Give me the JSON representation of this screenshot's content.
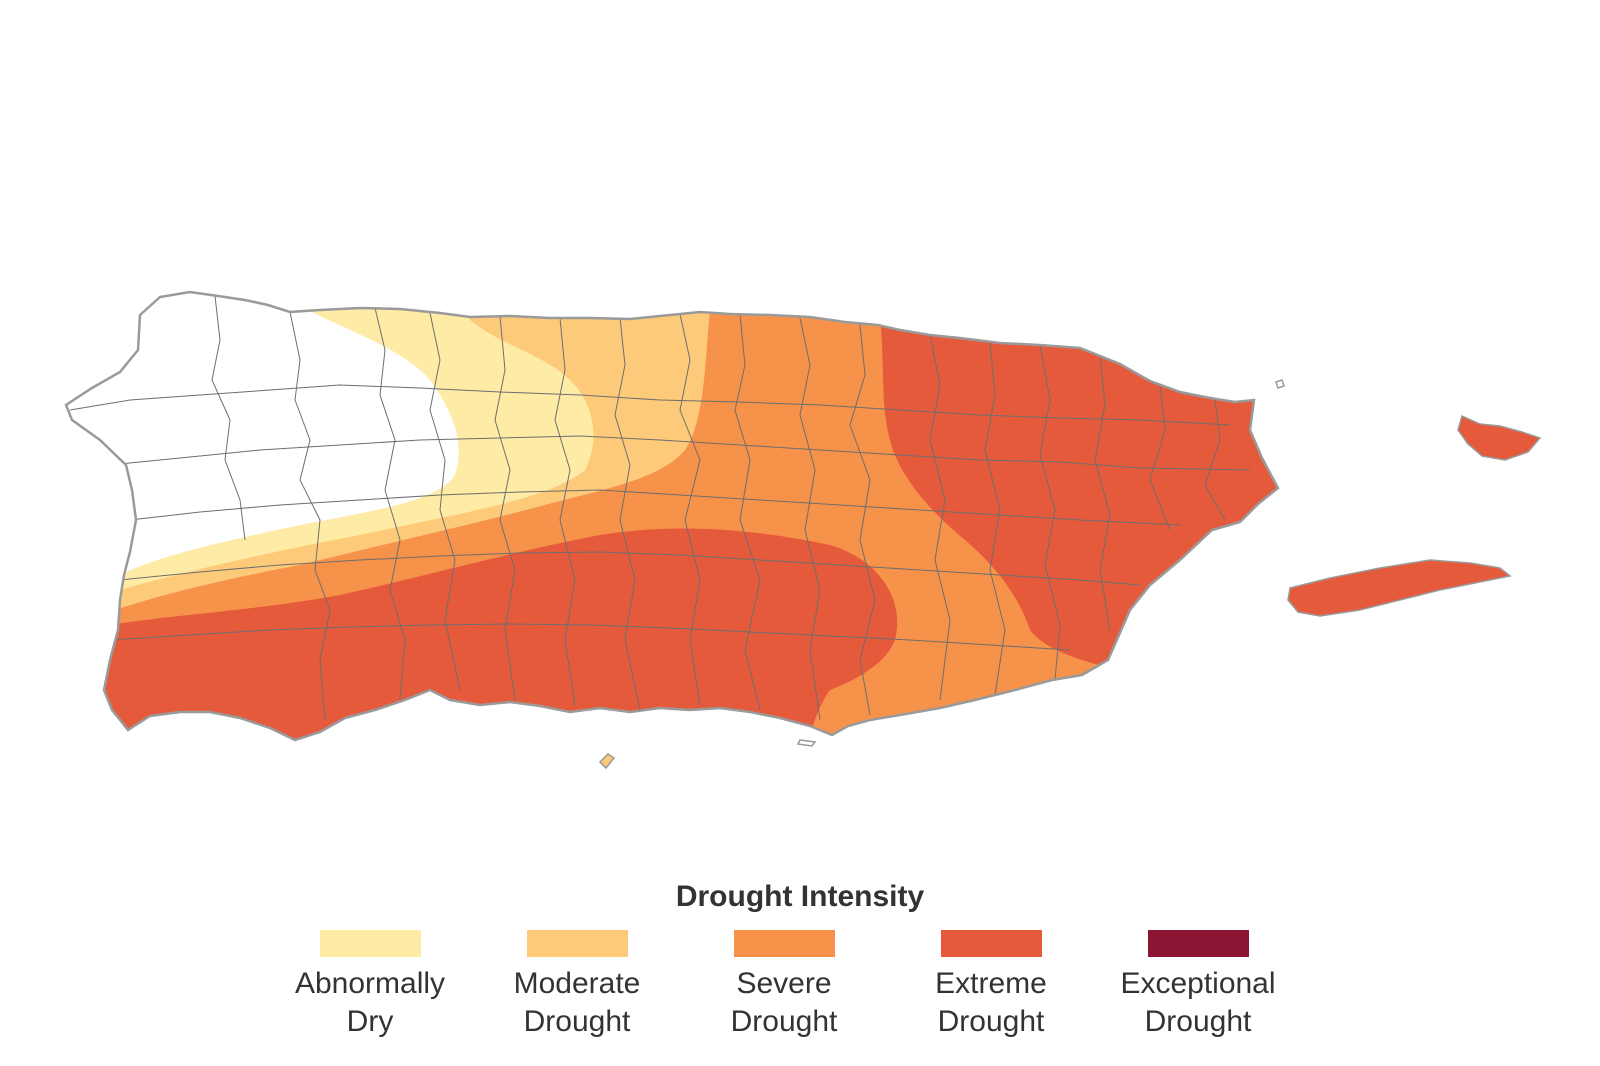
{
  "legend": {
    "title": "Drought Intensity",
    "items": [
      {
        "line1": "Abnormally",
        "line2": "Dry",
        "color": "#feeba6"
      },
      {
        "line1": "Moderate",
        "line2": "Drought",
        "color": "#fdca7a"
      },
      {
        "line1": "Severe",
        "line2": "Drought",
        "color": "#f7924a"
      },
      {
        "line1": "Extreme",
        "line2": "Drought",
        "color": "#e65a3c"
      },
      {
        "line1": "Exceptional",
        "line2": "Drought",
        "color": "#8b1633"
      }
    ]
  },
  "colors": {
    "none": "#ffffff",
    "outline": "#9a9a9a",
    "boundary": "#6e6e6e"
  }
}
